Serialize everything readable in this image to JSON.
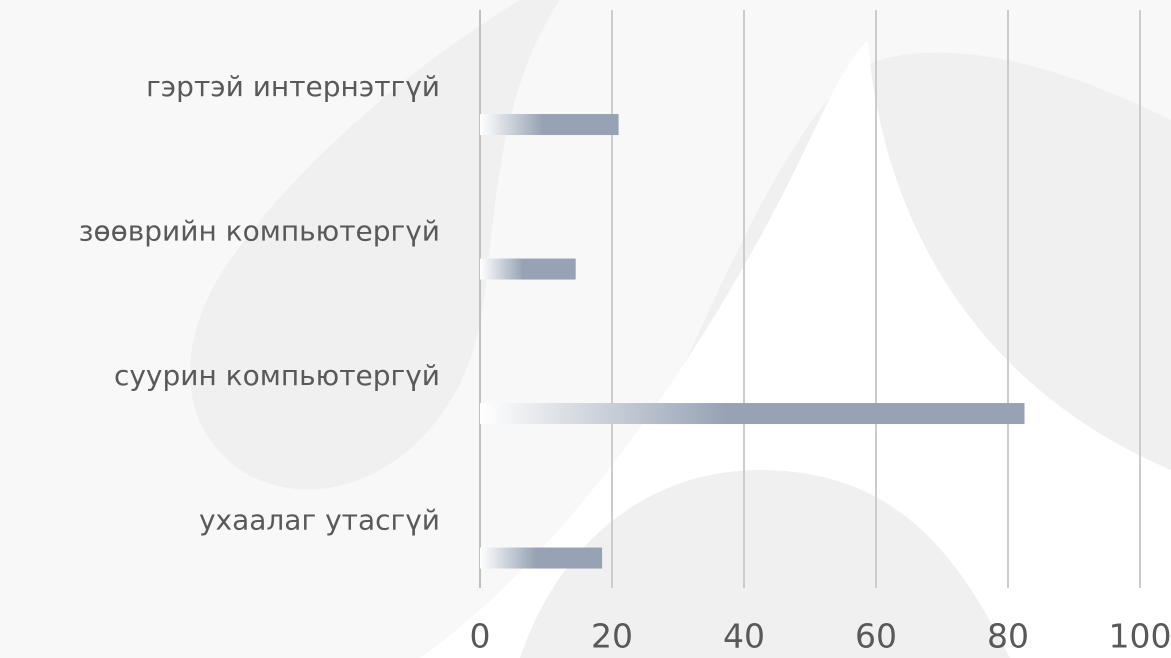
{
  "chart_data": {
    "type": "bar",
    "orientation": "horizontal",
    "categories": [
      "гэртэй интернэтгүй",
      "зөөврийн компьютергүй",
      "суурин компьютергүй",
      "ухаалаг утасгүй"
    ],
    "values": [
      21,
      14.5,
      82.5,
      18.5
    ],
    "color": "#97a3b4",
    "xlim": [
      0,
      100
    ],
    "xticks": [
      0,
      20,
      40,
      60,
      80,
      100
    ],
    "grid": true
  }
}
